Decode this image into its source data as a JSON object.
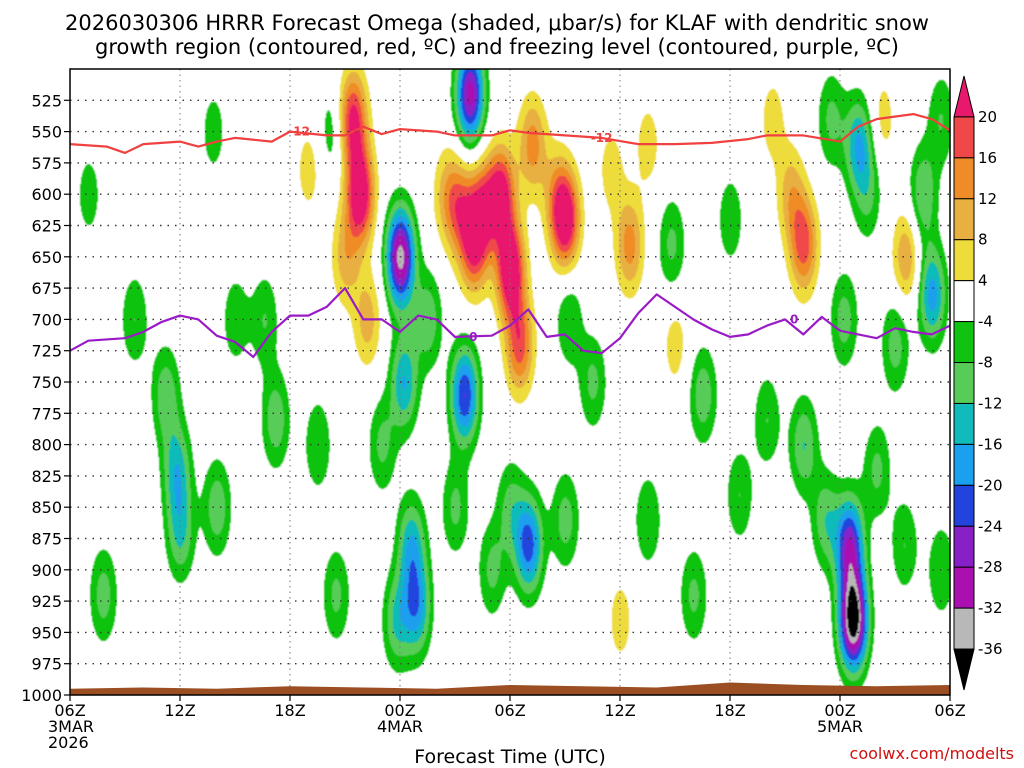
{
  "chart_data": {
    "type": "heatmap",
    "title_lines": [
      "2026030306 HRRR Forecast Omega (shaded, μbar/s) for KLAF with dendritic snow",
      "growth region (contoured, red, ºC) and freezing level (contoured, purple, ºC)"
    ],
    "xlabel": "Forecast Time (UTC)",
    "credit": "coolwx.com/modelts",
    "x_ticks": [
      {
        "hour": 0,
        "lines": [
          "06Z",
          "3MAR",
          "2026"
        ]
      },
      {
        "hour": 6,
        "lines": [
          "12Z"
        ]
      },
      {
        "hour": 12,
        "lines": [
          "18Z"
        ]
      },
      {
        "hour": 18,
        "lines": [
          "00Z",
          "4MAR"
        ]
      },
      {
        "hour": 24,
        "lines": [
          "06Z"
        ]
      },
      {
        "hour": 30,
        "lines": [
          "12Z"
        ]
      },
      {
        "hour": 36,
        "lines": [
          "18Z"
        ]
      },
      {
        "hour": 42,
        "lines": [
          "00Z",
          "5MAR"
        ]
      },
      {
        "hour": 48,
        "lines": [
          "06Z"
        ]
      }
    ],
    "xlim": [
      0,
      48
    ],
    "y_ticks": [
      525,
      550,
      575,
      600,
      625,
      650,
      675,
      700,
      725,
      750,
      775,
      800,
      825,
      850,
      875,
      900,
      925,
      950,
      975,
      1000
    ],
    "ylim": [
      500,
      1000
    ],
    "y_units": "hPa",
    "colorbar": {
      "labels": [
        "20",
        "16",
        "12",
        "8",
        "4",
        "-4",
        "-8",
        "-12",
        "-16",
        "-20",
        "-24",
        "-28",
        "-32",
        "-36"
      ],
      "levels": [
        24,
        20,
        16,
        12,
        8,
        4,
        -4,
        -8,
        -12,
        -16,
        -20,
        -24,
        -28,
        -32,
        -36,
        -40
      ],
      "colors": [
        "#e8186c",
        "#f04848",
        "#f08c28",
        "#e8b040",
        "#eedc3c",
        "#ffffff",
        "#11c311",
        "#58cc58",
        "#11bbbb",
        "#1aa0ee",
        "#2244dd",
        "#8820c8",
        "#aa10b0",
        "#b8b8b8",
        "#000000"
      ]
    },
    "omega_cells": [
      {
        "h": 3.5,
        "p": 700,
        "v": -8
      },
      {
        "h": 1.0,
        "p": 600,
        "v": -6
      },
      {
        "h": 1.8,
        "p": 920,
        "v": -10
      },
      {
        "h": 5.2,
        "p": 760,
        "v": -11
      },
      {
        "h": 5.8,
        "p": 820,
        "v": -14
      },
      {
        "h": 6.0,
        "p": 870,
        "v": -12
      },
      {
        "h": 7.8,
        "p": 550,
        "v": -6
      },
      {
        "h": 8.0,
        "p": 850,
        "v": -11
      },
      {
        "h": 9.0,
        "p": 700,
        "v": -7
      },
      {
        "h": 10.6,
        "p": 700,
        "v": -8
      },
      {
        "h": 11.2,
        "p": 780,
        "v": -11
      },
      {
        "h": 13.0,
        "p": 580,
        "v": 6
      },
      {
        "h": 13.5,
        "p": 800,
        "v": -8
      },
      {
        "h": 14.3,
        "p": 550,
        "v": -7
      },
      {
        "h": 14.5,
        "p": 920,
        "v": -9
      },
      {
        "h": 15.0,
        "p": 650,
        "v": 10
      },
      {
        "h": 15.4,
        "p": 540,
        "v": 22
      },
      {
        "h": 15.8,
        "p": 600,
        "v": 26
      },
      {
        "h": 16.2,
        "p": 700,
        "v": 10
      },
      {
        "h": 17.0,
        "p": 800,
        "v": -9
      },
      {
        "h": 17.8,
        "p": 940,
        "v": -12
      },
      {
        "h": 18.0,
        "p": 650,
        "v": -34
      },
      {
        "h": 18.2,
        "p": 750,
        "v": -16
      },
      {
        "h": 18.6,
        "p": 880,
        "v": -15
      },
      {
        "h": 18.9,
        "p": 930,
        "v": -17
      },
      {
        "h": 19.5,
        "p": 700,
        "v": -11
      },
      {
        "h": 20.5,
        "p": 600,
        "v": 8
      },
      {
        "h": 21.0,
        "p": 850,
        "v": -9
      },
      {
        "h": 21.2,
        "p": 610,
        "v": 14
      },
      {
        "h": 22.0,
        "p": 640,
        "v": 20
      },
      {
        "h": 22.5,
        "p": 610,
        "v": 16
      },
      {
        "h": 21.5,
        "p": 760,
        "v": -24
      },
      {
        "h": 21.8,
        "p": 520,
        "v": -30
      },
      {
        "h": 23.5,
        "p": 600,
        "v": 23
      },
      {
        "h": 24.0,
        "p": 660,
        "v": 27
      },
      {
        "h": 24.5,
        "p": 720,
        "v": 18
      },
      {
        "h": 23.0,
        "p": 900,
        "v": -9
      },
      {
        "h": 24.0,
        "p": 850,
        "v": -9
      },
      {
        "h": 25.0,
        "p": 880,
        "v": -22
      },
      {
        "h": 25.2,
        "p": 560,
        "v": 14
      },
      {
        "h": 26.5,
        "p": 600,
        "v": 8
      },
      {
        "h": 27.0,
        "p": 620,
        "v": 25
      },
      {
        "h": 27.2,
        "p": 700,
        "v": -8
      },
      {
        "h": 27.0,
        "p": 860,
        "v": -10
      },
      {
        "h": 28.5,
        "p": 750,
        "v": -9
      },
      {
        "h": 29.5,
        "p": 580,
        "v": 6
      },
      {
        "h": 30.5,
        "p": 640,
        "v": 14
      },
      {
        "h": 31.5,
        "p": 560,
        "v": 6
      },
      {
        "h": 30.0,
        "p": 940,
        "v": 6
      },
      {
        "h": 31.5,
        "p": 860,
        "v": -8
      },
      {
        "h": 33.0,
        "p": 720,
        "v": 6
      },
      {
        "h": 32.8,
        "p": 640,
        "v": -9
      },
      {
        "h": 34.5,
        "p": 760,
        "v": -11
      },
      {
        "h": 34.0,
        "p": 920,
        "v": -9
      },
      {
        "h": 36.0,
        "p": 620,
        "v": -7
      },
      {
        "h": 36.5,
        "p": 840,
        "v": -8
      },
      {
        "h": 38.0,
        "p": 780,
        "v": -8
      },
      {
        "h": 38.3,
        "p": 540,
        "v": 6
      },
      {
        "h": 39.3,
        "p": 600,
        "v": 10
      },
      {
        "h": 40.0,
        "p": 640,
        "v": 18
      },
      {
        "h": 40.0,
        "p": 800,
        "v": -12
      },
      {
        "h": 41.2,
        "p": 860,
        "v": -11
      },
      {
        "h": 41.5,
        "p": 540,
        "v": -9
      },
      {
        "h": 42.2,
        "p": 700,
        "v": -10
      },
      {
        "h": 42.5,
        "p": 880,
        "v": -26
      },
      {
        "h": 42.7,
        "p": 940,
        "v": -40
      },
      {
        "h": 43.0,
        "p": 560,
        "v": -16
      },
      {
        "h": 43.5,
        "p": 600,
        "v": -8
      },
      {
        "h": 44.3,
        "p": 540,
        "v": 6
      },
      {
        "h": 44.0,
        "p": 820,
        "v": -9
      },
      {
        "h": 45.0,
        "p": 720,
        "v": -10
      },
      {
        "h": 45.6,
        "p": 650,
        "v": 12
      },
      {
        "h": 45.5,
        "p": 880,
        "v": -8
      },
      {
        "h": 46.5,
        "p": 600,
        "v": -12
      },
      {
        "h": 47.0,
        "p": 680,
        "v": -18
      },
      {
        "h": 47.5,
        "p": 900,
        "v": -8
      },
      {
        "h": 47.5,
        "p": 540,
        "v": -8
      }
    ],
    "dendritic_contour": {
      "label": "-12",
      "color": "#f04040",
      "label_hours": [
        12.5,
        29.0
      ],
      "points": [
        [
          0,
          560
        ],
        [
          2,
          562
        ],
        [
          3,
          567
        ],
        [
          4,
          560
        ],
        [
          6,
          558
        ],
        [
          7,
          562
        ],
        [
          8,
          558
        ],
        [
          9,
          555
        ],
        [
          11,
          558
        ],
        [
          12,
          550
        ],
        [
          14,
          553
        ],
        [
          15,
          553
        ],
        [
          16,
          546
        ],
        [
          17,
          552
        ],
        [
          18,
          548
        ],
        [
          20,
          550
        ],
        [
          21,
          553
        ],
        [
          23,
          553
        ],
        [
          24,
          549
        ],
        [
          25,
          551
        ],
        [
          27,
          553
        ],
        [
          29,
          555
        ],
        [
          31,
          560
        ],
        [
          33,
          560
        ],
        [
          35,
          559
        ],
        [
          37,
          556
        ],
        [
          38,
          553
        ],
        [
          40,
          553
        ],
        [
          42,
          558
        ],
        [
          43,
          546
        ],
        [
          44,
          540
        ],
        [
          46,
          536
        ],
        [
          47,
          540
        ],
        [
          48,
          549
        ]
      ]
    },
    "freezing_contour": {
      "label": "0",
      "color": "#9a1ac8",
      "label_hours": [
        22.0,
        39.5
      ],
      "points": [
        [
          0,
          725
        ],
        [
          1,
          717
        ],
        [
          3,
          715
        ],
        [
          4,
          710
        ],
        [
          5,
          702
        ],
        [
          6,
          697
        ],
        [
          7,
          700
        ],
        [
          8,
          713
        ],
        [
          9,
          718
        ],
        [
          10,
          730
        ],
        [
          11,
          710
        ],
        [
          12,
          697
        ],
        [
          13,
          697
        ],
        [
          14,
          690
        ],
        [
          15,
          675
        ],
        [
          16,
          700
        ],
        [
          17,
          700
        ],
        [
          18,
          710
        ],
        [
          19,
          697
        ],
        [
          20,
          700
        ],
        [
          21,
          714
        ],
        [
          23,
          713
        ],
        [
          24,
          705
        ],
        [
          25,
          692
        ],
        [
          26,
          714
        ],
        [
          27,
          712
        ],
        [
          28,
          725
        ],
        [
          29,
          727
        ],
        [
          30,
          715
        ],
        [
          31,
          695
        ],
        [
          32,
          680
        ],
        [
          33,
          690
        ],
        [
          34,
          700
        ],
        [
          35,
          708
        ],
        [
          36,
          714
        ],
        [
          37,
          712
        ],
        [
          38,
          705
        ],
        [
          39,
          700
        ],
        [
          40,
          712
        ],
        [
          41,
          698
        ],
        [
          42,
          709
        ],
        [
          43,
          712
        ],
        [
          44,
          715
        ],
        [
          45,
          707
        ],
        [
          46,
          710
        ],
        [
          47,
          712
        ],
        [
          48,
          705
        ]
      ]
    },
    "terrain_profile": {
      "color": "#9a4e22",
      "pressure_top": [
        995,
        994,
        995,
        993,
        994,
        995,
        992,
        993,
        994,
        990,
        992,
        993,
        992
      ]
    }
  }
}
